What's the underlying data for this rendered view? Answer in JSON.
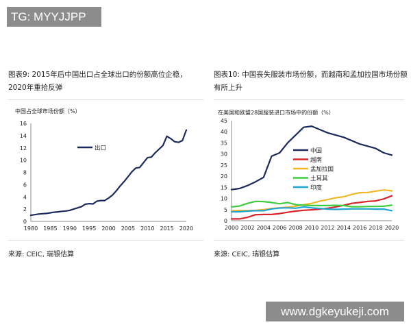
{
  "watermarks": {
    "top": "TG: MYYJJPP",
    "bottom": "www.dgkeyukeji.com"
  },
  "charts": [
    {
      "title": "图表9: 2015年后中国出口占全球出口的份额高位企稳，2020年重拾反弹",
      "source": "来源: CEIC, 瑞银估算"
    },
    {
      "title": "图表10: 中国丧失服装市场份额，而越南和孟加拉国市场份额有所上升",
      "source": "来源: CEIC, 瑞银估算"
    }
  ],
  "chart_data": [
    {
      "type": "line",
      "title": "",
      "ylabel": "中国占全球市场份额（%）",
      "xlabel": "",
      "x": [
        1980,
        1981,
        1982,
        1983,
        1984,
        1985,
        1986,
        1987,
        1988,
        1989,
        1990,
        1991,
        1992,
        1993,
        1994,
        1995,
        1996,
        1997,
        1998,
        1999,
        2000,
        2001,
        2002,
        2003,
        2004,
        2005,
        2006,
        2007,
        2008,
        2009,
        2010,
        2011,
        2012,
        2013,
        2014,
        2015,
        2016,
        2017,
        2018,
        2019,
        2020
      ],
      "xticks": [
        1980,
        1985,
        1990,
        1995,
        2000,
        2005,
        2010,
        2015,
        2020
      ],
      "yticks": [
        0,
        2,
        4,
        6,
        8,
        10,
        12,
        14,
        16
      ],
      "ylim": [
        0,
        16
      ],
      "xlim": [
        1980,
        2020
      ],
      "grid": false,
      "legend": "center-left",
      "series": [
        {
          "name": "出口",
          "color": "#1b2a5c",
          "values": [
            1.0,
            1.1,
            1.2,
            1.25,
            1.3,
            1.4,
            1.5,
            1.55,
            1.65,
            1.7,
            1.8,
            2.0,
            2.2,
            2.4,
            2.8,
            2.9,
            2.85,
            3.3,
            3.4,
            3.4,
            3.8,
            4.3,
            5.0,
            5.8,
            6.5,
            7.3,
            8.1,
            8.7,
            8.8,
            9.6,
            10.4,
            10.5,
            11.2,
            11.8,
            12.4,
            13.9,
            13.5,
            13.0,
            12.9,
            13.2,
            14.9
          ]
        }
      ]
    },
    {
      "type": "line",
      "title": "",
      "ylabel": "在美国和欧盟28国服装进口市场中的份额（%）",
      "xlabel": "",
      "x": [
        2000,
        2001,
        2002,
        2003,
        2004,
        2005,
        2006,
        2007,
        2008,
        2009,
        2010,
        2011,
        2012,
        2013,
        2014,
        2015,
        2016,
        2017,
        2018,
        2019,
        2020
      ],
      "xticks": [
        2000,
        2002,
        2004,
        2006,
        2008,
        2010,
        2012,
        2014,
        2016,
        2018,
        2020
      ],
      "yticks": [
        0,
        5,
        10,
        15,
        20,
        25,
        30,
        35,
        40,
        45
      ],
      "ylim": [
        0,
        45
      ],
      "xlim": [
        2000,
        2020
      ],
      "grid": false,
      "legend": "center",
      "series": [
        {
          "name": "中国",
          "color": "#1b2a5c",
          "values": [
            14,
            14.5,
            15.8,
            17.5,
            19.5,
            29,
            30.5,
            35,
            38.5,
            42,
            42.5,
            41,
            39.5,
            38.5,
            37.5,
            36,
            34.5,
            33.5,
            32.5,
            30.5,
            29.5
          ]
        },
        {
          "name": "越南",
          "color": "#d9252a",
          "values": [
            0.8,
            0.8,
            1.5,
            2.7,
            2.8,
            2.8,
            3.2,
            3.8,
            4.3,
            4.7,
            4.9,
            5.2,
            5.6,
            6.2,
            6.9,
            7.8,
            8.2,
            8.7,
            8.9,
            9.8,
            11.2
          ]
        },
        {
          "name": "孟加拉国",
          "color": "#f2b724",
          "values": [
            4.5,
            4.6,
            4.5,
            4.7,
            5.0,
            5.5,
            5.8,
            6.1,
            6.5,
            7.2,
            7.8,
            8.8,
            9.5,
            10.3,
            10.8,
            11.8,
            12.6,
            12.7,
            13.3,
            13.8,
            13.4
          ]
        },
        {
          "name": "土耳其",
          "color": "#3dcc3d",
          "values": [
            6.2,
            6.6,
            7.8,
            8.7,
            8.6,
            8.2,
            7.6,
            8.2,
            7.2,
            7.0,
            6.8,
            6.8,
            6.8,
            6.9,
            6.8,
            6.3,
            6.3,
            6.4,
            6.4,
            6.5,
            7.0
          ]
        },
        {
          "name": "印度",
          "color": "#1fa3d6",
          "values": [
            4,
            4,
            4.3,
            4.5,
            4.5,
            5.3,
            5.7,
            5.8,
            5.6,
            6.2,
            5.8,
            5.5,
            5.2,
            5.1,
            5.2,
            5.3,
            5.3,
            5.3,
            5.2,
            5.2,
            4.5
          ]
        }
      ]
    }
  ]
}
